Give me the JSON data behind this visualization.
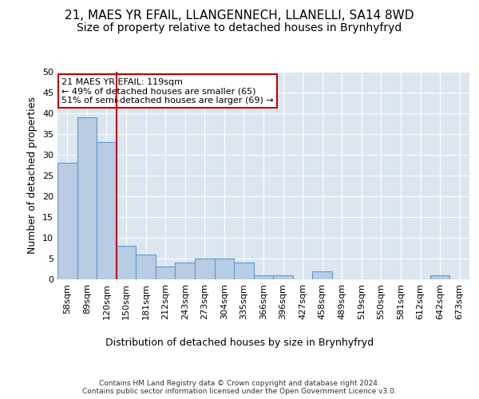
{
  "title": "21, MAES YR EFAIL, LLANGENNECH, LLANELLI, SA14 8WD",
  "subtitle": "Size of property relative to detached houses in Brynhyfryd",
  "xlabel": "Distribution of detached houses by size in Brynhyfryd",
  "ylabel": "Number of detached properties",
  "categories": [
    "58sqm",
    "89sqm",
    "120sqm",
    "150sqm",
    "181sqm",
    "212sqm",
    "243sqm",
    "273sqm",
    "304sqm",
    "335sqm",
    "366sqm",
    "396sqm",
    "427sqm",
    "458sqm",
    "489sqm",
    "519sqm",
    "550sqm",
    "581sqm",
    "612sqm",
    "642sqm",
    "673sqm"
  ],
  "values": [
    28,
    39,
    33,
    8,
    6,
    3,
    4,
    5,
    5,
    4,
    1,
    1,
    0,
    2,
    0,
    0,
    0,
    0,
    0,
    1,
    0
  ],
  "bar_color": "#b8cce4",
  "bar_edge_color": "#5b9bd5",
  "vline_x_idx": 2,
  "vline_color": "#c00000",
  "annotation_text": "21 MAES YR EFAIL: 119sqm\n← 49% of detached houses are smaller (65)\n51% of semi-detached houses are larger (69) →",
  "annotation_box_color": "#ffffff",
  "annotation_box_edge": "#c00000",
  "ylim": [
    0,
    50
  ],
  "yticks": [
    0,
    5,
    10,
    15,
    20,
    25,
    30,
    35,
    40,
    45,
    50
  ],
  "title_fontsize": 11,
  "subtitle_fontsize": 10,
  "xlabel_fontsize": 9,
  "ylabel_fontsize": 9,
  "tick_fontsize": 8,
  "annotation_fontsize": 8,
  "footer_line1": "Contains HM Land Registry data © Crown copyright and database right 2024.",
  "footer_line2": "Contains public sector information licensed under the Open Government Licence v3.0.",
  "background_color": "#dce6f1",
  "fig_background": "#ffffff"
}
